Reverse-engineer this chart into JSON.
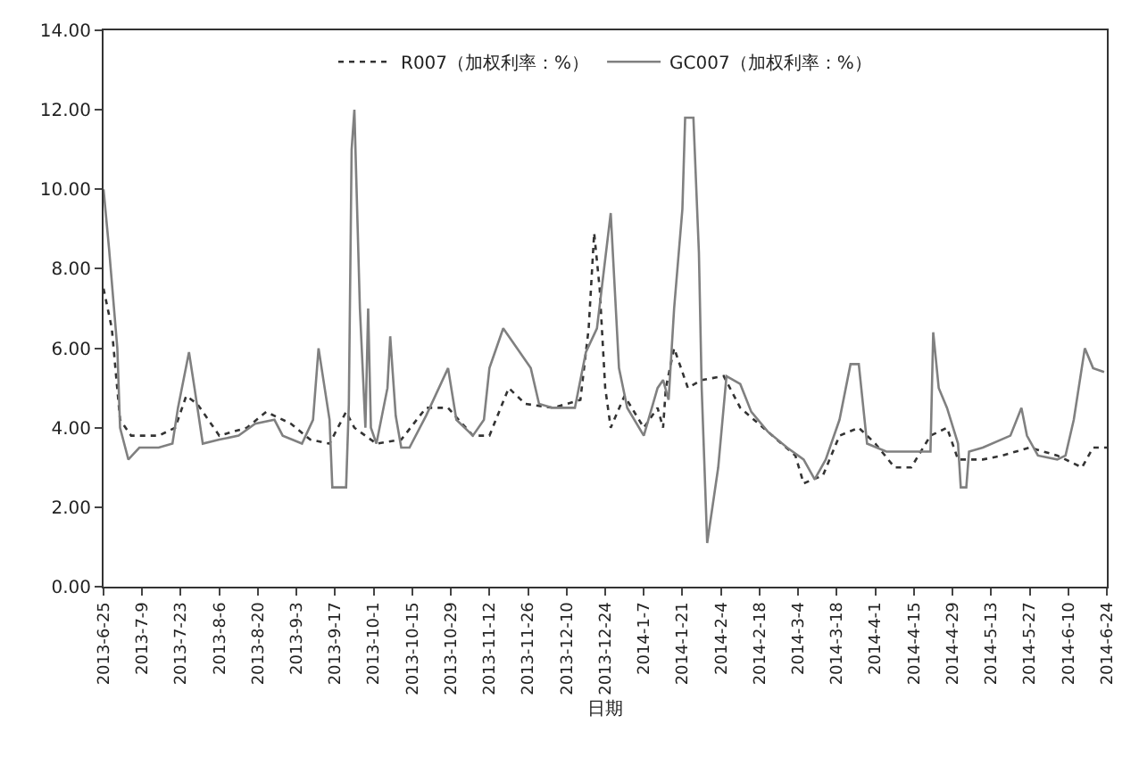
{
  "chart_data": {
    "type": "line",
    "xlabel": "日期",
    "legend": "top",
    "grid": false,
    "marker": "none",
    "xlim": [
      "2013-06-25",
      "2014-06-24"
    ],
    "xticks": [
      {
        "value": "2013-06-25",
        "label": "2013-6-25"
      },
      {
        "value": "2013-07-09",
        "label": "2013-7-9"
      },
      {
        "value": "2013-07-23",
        "label": "2013-7-23"
      },
      {
        "value": "2013-08-06",
        "label": "2013-8-6"
      },
      {
        "value": "2013-08-20",
        "label": "2013-8-20"
      },
      {
        "value": "2013-09-03",
        "label": "2013-9-3"
      },
      {
        "value": "2013-09-17",
        "label": "2013-9-17"
      },
      {
        "value": "2013-10-01",
        "label": "2013-10-1"
      },
      {
        "value": "2013-10-15",
        "label": "2013-10-15"
      },
      {
        "value": "2013-10-29",
        "label": "2013-10-29"
      },
      {
        "value": "2013-11-12",
        "label": "2013-11-12"
      },
      {
        "value": "2013-11-26",
        "label": "2013-11-26"
      },
      {
        "value": "2013-12-10",
        "label": "2013-12-10"
      },
      {
        "value": "2013-12-24",
        "label": "2013-12-24"
      },
      {
        "value": "2014-01-07",
        "label": "2014-1-7"
      },
      {
        "value": "2014-01-21",
        "label": "2014-1-21"
      },
      {
        "value": "2014-02-04",
        "label": "2014-2-4"
      },
      {
        "value": "2014-02-18",
        "label": "2014-2-18"
      },
      {
        "value": "2014-03-04",
        "label": "2014-3-4"
      },
      {
        "value": "2014-03-18",
        "label": "2014-3-18"
      },
      {
        "value": "2014-04-01",
        "label": "2014-4-1"
      },
      {
        "value": "2014-04-15",
        "label": "2014-4-15"
      },
      {
        "value": "2014-04-29",
        "label": "2014-4-29"
      },
      {
        "value": "2014-05-13",
        "label": "2014-5-13"
      },
      {
        "value": "2014-05-27",
        "label": "2014-5-27"
      },
      {
        "value": "2014-06-10",
        "label": "2014-6-10"
      },
      {
        "value": "2014-06-24",
        "label": "2014-6-24"
      }
    ],
    "ylim": [
      0,
      14
    ],
    "yticks": [
      {
        "value": 0,
        "label": "0.00"
      },
      {
        "value": 2,
        "label": "2.00"
      },
      {
        "value": 4,
        "label": "4.00"
      },
      {
        "value": 6,
        "label": "6.00"
      },
      {
        "value": 8,
        "label": "8.00"
      },
      {
        "value": 10,
        "label": "10.00"
      },
      {
        "value": 12,
        "label": "12.00"
      },
      {
        "value": 14,
        "label": "14.00"
      }
    ],
    "series": [
      {
        "name": "R007（加权利率：%）",
        "color": "#333333",
        "line_style": "dotted",
        "x": [
          "2013-06-25",
          "2013-06-28",
          "2013-07-01",
          "2013-07-05",
          "2013-07-15",
          "2013-07-21",
          "2013-07-25",
          "2013-07-29",
          "2013-08-01",
          "2013-08-06",
          "2013-08-16",
          "2013-08-23",
          "2013-09-01",
          "2013-09-08",
          "2013-09-15",
          "2013-09-21",
          "2013-09-24",
          "2013-10-02",
          "2013-10-11",
          "2013-10-20",
          "2013-10-28",
          "2013-11-06",
          "2013-11-12",
          "2013-11-19",
          "2013-11-25",
          "2013-12-05",
          "2013-12-15",
          "2013-12-18",
          "2013-12-20",
          "2013-12-22",
          "2013-12-24",
          "2013-12-26",
          "2013-12-31",
          "2014-01-07",
          "2014-01-12",
          "2014-01-14",
          "2014-01-15",
          "2014-01-18",
          "2014-01-23",
          "2014-01-28",
          "2014-02-05",
          "2014-02-11",
          "2014-02-21",
          "2014-03-03",
          "2014-03-06",
          "2014-03-13",
          "2014-03-19",
          "2014-03-26",
          "2014-04-01",
          "2014-04-08",
          "2014-04-14",
          "2014-04-21",
          "2014-04-27",
          "2014-05-01",
          "2014-05-10",
          "2014-05-17",
          "2014-05-27",
          "2014-06-06",
          "2014-06-15",
          "2014-06-19",
          "2014-06-24"
        ],
        "values": [
          7.5,
          6.5,
          4.2,
          3.8,
          3.8,
          4.0,
          4.8,
          4.6,
          4.3,
          3.8,
          4.0,
          4.4,
          4.1,
          3.7,
          3.6,
          4.4,
          4.0,
          3.6,
          3.7,
          4.5,
          4.5,
          3.8,
          3.8,
          5.0,
          4.6,
          4.5,
          4.7,
          6.5,
          8.9,
          7.5,
          5.0,
          4.0,
          4.8,
          4.0,
          4.5,
          4.0,
          5.0,
          6.0,
          5.0,
          5.2,
          5.3,
          4.5,
          3.9,
          3.3,
          2.6,
          2.8,
          3.8,
          4.0,
          3.6,
          3.0,
          3.0,
          3.8,
          4.0,
          3.2,
          3.2,
          3.3,
          3.5,
          3.3,
          3.0,
          3.5,
          3.5
        ]
      },
      {
        "name": "GC007（加权利率：%）",
        "color": "#808080",
        "line_style": "solid",
        "x": [
          "2013-06-25",
          "2013-06-27",
          "2013-06-30",
          "2013-07-01",
          "2013-07-04",
          "2013-07-08",
          "2013-07-15",
          "2013-07-20",
          "2013-07-22",
          "2013-07-26",
          "2013-07-28",
          "2013-07-31",
          "2013-08-06",
          "2013-08-13",
          "2013-08-19",
          "2013-08-26",
          "2013-08-29",
          "2013-09-05",
          "2013-09-09",
          "2013-09-11",
          "2013-09-15",
          "2013-09-16",
          "2013-09-21",
          "2013-09-22",
          "2013-09-23",
          "2013-09-24",
          "2013-09-26",
          "2013-09-28",
          "2013-09-29",
          "2013-09-30",
          "2013-10-02",
          "2013-10-06",
          "2013-10-07",
          "2013-10-09",
          "2013-10-11",
          "2013-10-14",
          "2013-10-20",
          "2013-10-28",
          "2013-10-31",
          "2013-11-06",
          "2013-11-10",
          "2013-11-12",
          "2013-11-17",
          "2013-11-22",
          "2013-11-27",
          "2013-11-30",
          "2013-12-05",
          "2013-12-13",
          "2013-12-17",
          "2013-12-21",
          "2013-12-26",
          "2013-12-29",
          "2014-01-01",
          "2014-01-07",
          "2014-01-12",
          "2014-01-14",
          "2014-01-16",
          "2014-01-18",
          "2014-01-21",
          "2014-01-22",
          "2014-01-25",
          "2014-01-27",
          "2014-01-28",
          "2014-01-30",
          "2014-02-03",
          "2014-02-06",
          "2014-02-11",
          "2014-02-15",
          "2014-02-21",
          "2014-02-28",
          "2014-03-06",
          "2014-03-10",
          "2014-03-14",
          "2014-03-19",
          "2014-03-23",
          "2014-03-26",
          "2014-03-29",
          "2014-04-05",
          "2014-04-11",
          "2014-04-21",
          "2014-04-22",
          "2014-04-24",
          "2014-04-27",
          "2014-05-01",
          "2014-05-02",
          "2014-05-04",
          "2014-05-05",
          "2014-05-10",
          "2014-05-20",
          "2014-05-24",
          "2014-05-26",
          "2014-05-30",
          "2014-06-06",
          "2014-06-09",
          "2014-06-12",
          "2014-06-16",
          "2014-06-19",
          "2014-06-23"
        ],
        "values": [
          10.0,
          8.5,
          6.0,
          4.0,
          3.2,
          3.5,
          3.5,
          3.6,
          4.5,
          5.9,
          5.0,
          3.6,
          3.7,
          3.8,
          4.1,
          4.2,
          3.8,
          3.6,
          4.2,
          6.0,
          4.2,
          2.5,
          2.5,
          4.6,
          11.0,
          12.0,
          7.0,
          4.0,
          7.0,
          4.0,
          3.6,
          5.0,
          6.3,
          4.3,
          3.5,
          3.5,
          4.3,
          5.5,
          4.2,
          3.8,
          4.2,
          5.5,
          6.5,
          6.0,
          5.5,
          4.6,
          4.5,
          4.5,
          5.9,
          6.5,
          9.4,
          5.5,
          4.5,
          3.8,
          5.0,
          5.2,
          4.7,
          7.0,
          9.5,
          11.8,
          11.8,
          8.4,
          5.0,
          1.1,
          3.0,
          5.3,
          5.1,
          4.4,
          3.9,
          3.5,
          3.2,
          2.7,
          3.2,
          4.2,
          5.6,
          5.6,
          3.6,
          3.4,
          3.4,
          3.4,
          6.4,
          5.0,
          4.5,
          3.6,
          2.5,
          2.5,
          3.4,
          3.5,
          3.8,
          4.5,
          3.8,
          3.3,
          3.2,
          3.3,
          4.2,
          6.0,
          5.5,
          5.4
        ]
      }
    ]
  }
}
